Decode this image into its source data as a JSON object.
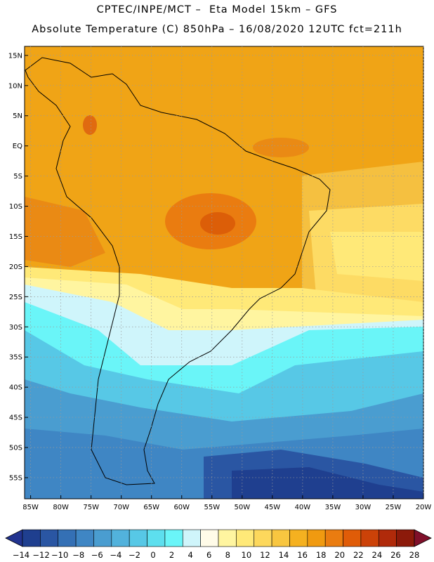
{
  "header": {
    "title_line1": "CPTEC/INPE/MCT –  Eta Model 15km – GFS",
    "title_line2": "Absolute Temperature (C) 850hPa – 16/08/2020 12UTC fct=211h"
  },
  "map": {
    "lat_labels": [
      "15N",
      "10N",
      "5N",
      "EQ",
      "5S",
      "10S",
      "15S",
      "20S",
      "25S",
      "30S",
      "35S",
      "40S",
      "45S",
      "50S",
      "55S"
    ],
    "lat_values": [
      15,
      10,
      5,
      0,
      -5,
      -10,
      -15,
      -20,
      -25,
      -30,
      -35,
      -40,
      -45,
      -50,
      -55
    ],
    "lon_labels": [
      "85W",
      "80W",
      "75W",
      "70W",
      "65W",
      "60W",
      "55W",
      "50W",
      "45W",
      "40W",
      "35W",
      "30W",
      "25W",
      "20W"
    ],
    "lon_values": [
      -85,
      -80,
      -75,
      -70,
      -65,
      -60,
      -55,
      -50,
      -45,
      -40,
      -35,
      -30,
      -25,
      -20
    ],
    "lat_range": [
      -58.5,
      16.5
    ],
    "lon_range": [
      -86,
      -20
    ]
  },
  "colorbar": {
    "labels": [
      "-14",
      "-12",
      "-10",
      "-8",
      "-6",
      "-4",
      "-2",
      "0",
      "2",
      "4",
      "6",
      "8",
      "10",
      "12",
      "14",
      "16",
      "18",
      "20",
      "22",
      "24",
      "26",
      "28"
    ],
    "colors": [
      "#1f3f8f",
      "#2a56a3",
      "#3470b5",
      "#3f86c4",
      "#4a9dd0",
      "#52b2dc",
      "#57c8e6",
      "#5ddfee",
      "#6af5f8",
      "#cff5fb",
      "#fffbe8",
      "#fff5a0",
      "#ffe978",
      "#fdd85c",
      "#f8c640",
      "#f5b120",
      "#f09a10",
      "#ea7c10",
      "#e05c08",
      "#cc4208",
      "#b02a0a",
      "#8c1a0a"
    ],
    "under_color": "#22338f",
    "over_color": "#80102a"
  }
}
